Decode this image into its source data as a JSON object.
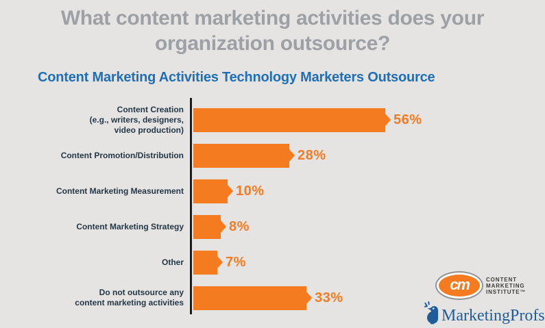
{
  "header": {
    "title": "What content marketing activities does your organization outsource?",
    "title_lines": [
      "What content marketing activities does your",
      "organization outsource?"
    ]
  },
  "chart_data": {
    "type": "bar",
    "orientation": "horizontal",
    "title": "Content Marketing Activities Technology Marketers Outsource",
    "categories": [
      "Content Creation (e.g., writers, designers, video production)",
      "Content Promotion/Distribution",
      "Content Marketing Measurement",
      "Content Marketing Strategy",
      "Other",
      "Do not outsource any content marketing activities"
    ],
    "category_label_lines": [
      [
        "Content Creation",
        "(e.g., writers, designers,",
        "video production)"
      ],
      [
        "Content Promotion/Distribution"
      ],
      [
        "Content Marketing Measurement"
      ],
      [
        "Content Marketing Strategy"
      ],
      [
        "Other"
      ],
      [
        "Do not outsource any",
        "content marketing activities"
      ]
    ],
    "values": [
      56,
      28,
      10,
      8,
      7,
      33
    ],
    "value_labels": [
      "56%",
      "28%",
      "10%",
      "8%",
      "7%",
      "33%"
    ],
    "unit": "percent",
    "xlim": [
      0,
      60
    ],
    "grid": false,
    "legend": false,
    "bar_color": "#F47B20"
  },
  "logos": {
    "cmi": {
      "monogram": "cm",
      "name_lines": [
        "CONTENT",
        "MARKETING",
        "INSTITUTE™"
      ]
    },
    "marketingprofs": {
      "icon": "bird-icon",
      "wordmark": "MarketingProfs"
    }
  },
  "colors": {
    "background": "#E5E4E2",
    "header_text": "#9DA0A4",
    "chart_title": "#1E6FB8",
    "bar": "#F47B20",
    "value_label": "#F47B20",
    "category_label": "#233746",
    "axis": "#1C1C1C",
    "cmi_orange": "#F47B20",
    "marketingprofs_blue": "#1E5C9B"
  }
}
